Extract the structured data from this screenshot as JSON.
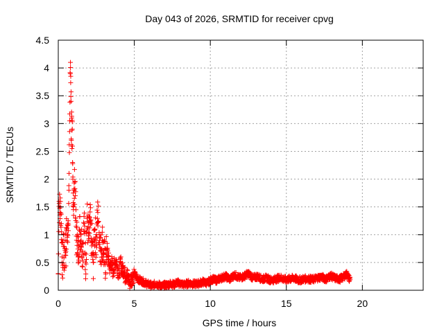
{
  "chart_data": {
    "type": "scatter",
    "title": "Day 043 of 2026, SRMTID for receiver cpvg",
    "xlabel": "GPS time / hours",
    "ylabel": "SRMTID / TECUs",
    "xlim": [
      0,
      24
    ],
    "ylim": [
      0,
      4.5
    ],
    "xticks": [
      0,
      5,
      10,
      15,
      20
    ],
    "xtick_labels": [
      "0",
      "5",
      "10",
      "15",
      "20"
    ],
    "yticks": [
      0,
      0.5,
      1,
      1.5,
      2,
      2.5,
      3,
      3.5,
      4,
      4.5
    ],
    "ytick_labels": [
      "0",
      "0.5",
      "1",
      "1.5",
      "2",
      "2.5",
      "3",
      "3.5",
      "4",
      "4.5"
    ],
    "grid": true,
    "marker": "+",
    "marker_color": "#ff0000",
    "x_end": 19.2,
    "series": [
      {
        "name": "SRMTID",
        "x": [
          0.0,
          0.05,
          0.1,
          0.15,
          0.2,
          0.25,
          0.3,
          0.35,
          0.4,
          0.45,
          0.5,
          0.55,
          0.6,
          0.65,
          0.7,
          0.75,
          0.8,
          0.82,
          0.84,
          0.86,
          0.88,
          0.9,
          0.92,
          0.94,
          0.96,
          0.98,
          1.0,
          1.05,
          1.1,
          1.15,
          1.2,
          1.25,
          1.3,
          1.35,
          1.4,
          1.5,
          1.6,
          1.7,
          1.8,
          1.9,
          2.0,
          2.1,
          2.2,
          2.3,
          2.4,
          2.5,
          2.6,
          2.7,
          2.8,
          2.9,
          3.0,
          3.1,
          3.2,
          3.3,
          3.4,
          3.5,
          3.6,
          3.7,
          3.8,
          3.9,
          4.0,
          4.1,
          4.2,
          4.3,
          4.4,
          4.5,
          4.6,
          4.7,
          4.8,
          4.9,
          5.0,
          5.2,
          5.4,
          5.6,
          5.8,
          6.0,
          6.2,
          6.4,
          6.6,
          6.8,
          7.0,
          7.2,
          7.4,
          7.6,
          7.8,
          8.0,
          8.3,
          8.6,
          8.9,
          9.2,
          9.5,
          9.8,
          10.1,
          10.4,
          10.7,
          11.0,
          11.3,
          11.6,
          11.9,
          12.2,
          12.5,
          12.8,
          13.1,
          13.4,
          13.7,
          14.0,
          14.3,
          14.6,
          14.9,
          15.2,
          15.5,
          15.8,
          16.1,
          16.4,
          16.7,
          17.0,
          17.3,
          17.6,
          17.9,
          18.2,
          18.5,
          18.8,
          19.0,
          19.1,
          19.2
        ],
        "y": [
          0.3,
          1.6,
          1.4,
          1.5,
          1.2,
          0.6,
          0.45,
          1.0,
          0.4,
          0.9,
          0.7,
          1.1,
          1.0,
          1.25,
          1.8,
          3.05,
          4.1,
          3.85,
          3.4,
          2.7,
          3.1,
          2.55,
          2.9,
          2.3,
          2.0,
          1.75,
          1.5,
          1.8,
          1.95,
          1.3,
          0.9,
          1.0,
          0.6,
          0.8,
          1.1,
          1.0,
          0.7,
          1.2,
          0.5,
          1.3,
          0.9,
          1.25,
          0.8,
          0.5,
          1.1,
          0.85,
          1.4,
          1.0,
          0.7,
          0.9,
          0.65,
          0.5,
          0.75,
          0.55,
          0.4,
          0.5,
          0.35,
          0.45,
          0.55,
          0.4,
          0.3,
          0.5,
          0.35,
          0.4,
          0.25,
          0.3,
          0.2,
          0.15,
          0.2,
          0.25,
          0.3,
          0.2,
          0.18,
          0.15,
          0.12,
          0.1,
          0.08,
          0.12,
          0.1,
          0.07,
          0.09,
          0.1,
          0.12,
          0.1,
          0.14,
          0.12,
          0.1,
          0.13,
          0.11,
          0.12,
          0.15,
          0.13,
          0.2,
          0.18,
          0.22,
          0.25,
          0.2,
          0.28,
          0.22,
          0.25,
          0.3,
          0.22,
          0.25,
          0.2,
          0.22,
          0.18,
          0.2,
          0.23,
          0.19,
          0.2,
          0.22,
          0.18,
          0.2,
          0.21,
          0.19,
          0.22,
          0.24,
          0.2,
          0.26,
          0.22,
          0.2,
          0.25,
          0.3,
          0.22,
          0.2
        ]
      }
    ]
  }
}
